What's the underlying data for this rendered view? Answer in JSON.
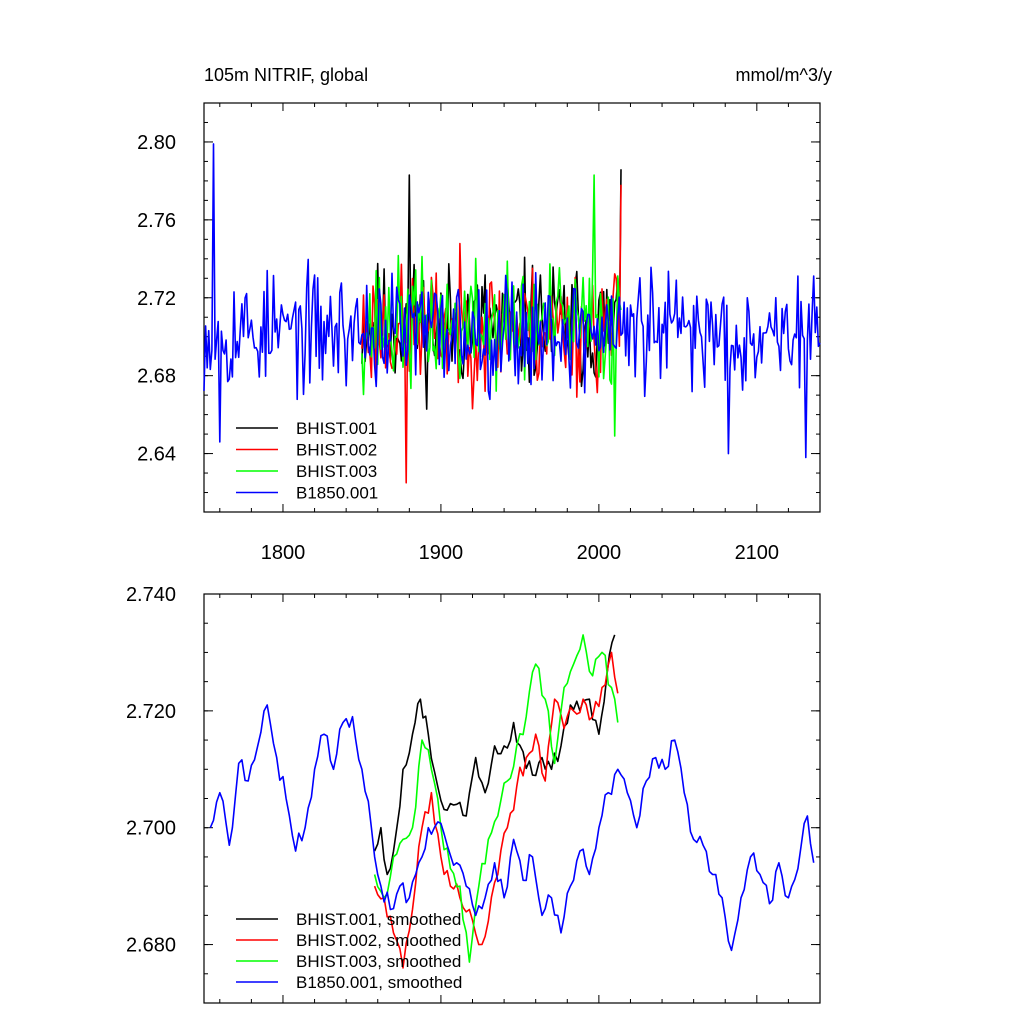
{
  "chart_data": [
    {
      "type": "line",
      "title": "105m NITRIF, global",
      "units": "mmol/m^3/y",
      "xlim": [
        1750,
        2140
      ],
      "ylim": [
        2.61,
        2.82
      ],
      "x_ticks": [
        1800,
        1900,
        2000,
        2100
      ],
      "x_tick_labels": [
        "1800",
        "1900",
        "2000",
        "2100"
      ],
      "y_ticks": [
        2.64,
        2.68,
        2.72,
        2.76,
        2.8
      ],
      "y_tick_labels": [
        "2.64",
        "2.68",
        "2.72",
        "2.76",
        "2.80"
      ],
      "legend_position": "bottom-left",
      "series": [
        {
          "name": "BHIST.001",
          "color": "#000000",
          "x_start": 1850,
          "x_end": 2014,
          "mean": 2.706,
          "amplitude": 0.03,
          "seed": 11,
          "peaks": [
            [
              1880,
              2.783
            ],
            [
              2014,
              2.786
            ]
          ]
        },
        {
          "name": "BHIST.002",
          "color": "#ff0000",
          "x_start": 1850,
          "x_end": 2014,
          "mean": 2.704,
          "amplitude": 0.03,
          "seed": 23,
          "peaks": [
            [
              1878,
              2.625
            ],
            [
              2014,
              2.778
            ]
          ]
        },
        {
          "name": "BHIST.003",
          "color": "#00ff00",
          "x_start": 1850,
          "x_end": 2014,
          "mean": 2.706,
          "amplitude": 0.03,
          "seed": 37,
          "peaks": [
            [
              1997,
              2.783
            ],
            [
              2010,
              2.649
            ]
          ]
        },
        {
          "name": "B1850.001",
          "color": "#0000ff",
          "x_start": 1750,
          "x_end": 2140,
          "mean": 2.703,
          "amplitude": 0.028,
          "seed": 53,
          "peaks": [
            [
              1756,
              2.799
            ],
            [
              1760,
              2.646
            ],
            [
              2082,
              2.64
            ],
            [
              2131,
              2.638
            ]
          ]
        }
      ]
    },
    {
      "type": "line",
      "title": "",
      "xlim": [
        1750,
        2140
      ],
      "ylim": [
        2.67,
        2.74
      ],
      "y_ticks": [
        2.68,
        2.7,
        2.72,
        2.74
      ],
      "y_tick_labels": [
        "2.680",
        "2.700",
        "2.720",
        "2.740"
      ],
      "legend_position": "bottom-left",
      "series": [
        {
          "name": "BHIST.001, smoothed",
          "color": "#000000",
          "x": [
            1858,
            1862,
            1866,
            1870,
            1876,
            1882,
            1887,
            1892,
            1898,
            1904,
            1910,
            1916,
            1922,
            1928,
            1934,
            1940,
            1946,
            1952,
            1958,
            1964,
            1970,
            1976,
            1982,
            1988,
            1994,
            2000,
            2005,
            2010
          ],
          "y": [
            2.696,
            2.7,
            2.692,
            2.696,
            2.71,
            2.716,
            2.722,
            2.716,
            2.707,
            2.703,
            2.704,
            2.702,
            2.712,
            2.706,
            2.714,
            2.714,
            2.718,
            2.713,
            2.709,
            2.712,
            2.71,
            2.714,
            2.721,
            2.72,
            2.722,
            2.716,
            2.726,
            2.733
          ]
        },
        {
          "name": "BHIST.002, smoothed",
          "color": "#ff0000",
          "x": [
            1858,
            1864,
            1870,
            1876,
            1882,
            1888,
            1894,
            1900,
            1906,
            1912,
            1918,
            1924,
            1930,
            1936,
            1942,
            1948,
            1954,
            1960,
            1966,
            1972,
            1978,
            1984,
            1990,
            1996,
            2002,
            2008,
            2012
          ],
          "y": [
            2.69,
            2.688,
            2.682,
            2.676,
            2.686,
            2.7,
            2.706,
            2.695,
            2.69,
            2.688,
            2.686,
            2.68,
            2.684,
            2.692,
            2.7,
            2.707,
            2.712,
            2.716,
            2.708,
            2.722,
            2.717,
            2.72,
            2.722,
            2.719,
            2.724,
            2.73,
            2.723
          ]
        },
        {
          "name": "BHIST.003, smoothed",
          "color": "#00ff00",
          "x": [
            1858,
            1864,
            1870,
            1876,
            1882,
            1888,
            1894,
            1900,
            1906,
            1912,
            1918,
            1924,
            1930,
            1936,
            1942,
            1948,
            1954,
            1960,
            1966,
            1972,
            1978,
            1984,
            1990,
            1996,
            2002,
            2008,
            2012
          ],
          "y": [
            2.692,
            2.688,
            2.695,
            2.698,
            2.7,
            2.715,
            2.71,
            2.7,
            2.693,
            2.69,
            2.677,
            2.69,
            2.698,
            2.702,
            2.708,
            2.714,
            2.719,
            2.728,
            2.722,
            2.711,
            2.724,
            2.728,
            2.733,
            2.726,
            2.73,
            2.724,
            2.718
          ]
        },
        {
          "name": "B1850.001, smoothed",
          "color": "#0000ff",
          "x": [
            1754,
            1760,
            1766,
            1772,
            1778,
            1784,
            1790,
            1796,
            1802,
            1808,
            1814,
            1820,
            1826,
            1832,
            1838,
            1844,
            1850,
            1856,
            1862,
            1868,
            1874,
            1880,
            1886,
            1892,
            1898,
            1904,
            1910,
            1916,
            1922,
            1928,
            1934,
            1940,
            1946,
            1952,
            1958,
            1964,
            1970,
            1976,
            1982,
            1988,
            1994,
            2000,
            2006,
            2012,
            2018,
            2024,
            2030,
            2036,
            2042,
            2048,
            2054,
            2060,
            2066,
            2072,
            2078,
            2084,
            2090,
            2096,
            2102,
            2108,
            2114,
            2120,
            2126,
            2132,
            2136
          ],
          "y": [
            2.7,
            2.706,
            2.697,
            2.711,
            2.708,
            2.714,
            2.721,
            2.712,
            2.705,
            2.696,
            2.7,
            2.71,
            2.716,
            2.71,
            2.718,
            2.719,
            2.71,
            2.7,
            2.69,
            2.686,
            2.69,
            2.688,
            2.694,
            2.7,
            2.701,
            2.697,
            2.694,
            2.69,
            2.685,
            2.688,
            2.694,
            2.688,
            2.698,
            2.691,
            2.695,
            2.685,
            2.688,
            2.682,
            2.69,
            2.696,
            2.692,
            2.7,
            2.706,
            2.71,
            2.706,
            2.7,
            2.708,
            2.712,
            2.71,
            2.715,
            2.706,
            2.698,
            2.697,
            2.692,
            2.688,
            2.679,
            2.688,
            2.695,
            2.692,
            2.687,
            2.694,
            2.688,
            2.693,
            2.702,
            2.694
          ]
        }
      ]
    }
  ]
}
